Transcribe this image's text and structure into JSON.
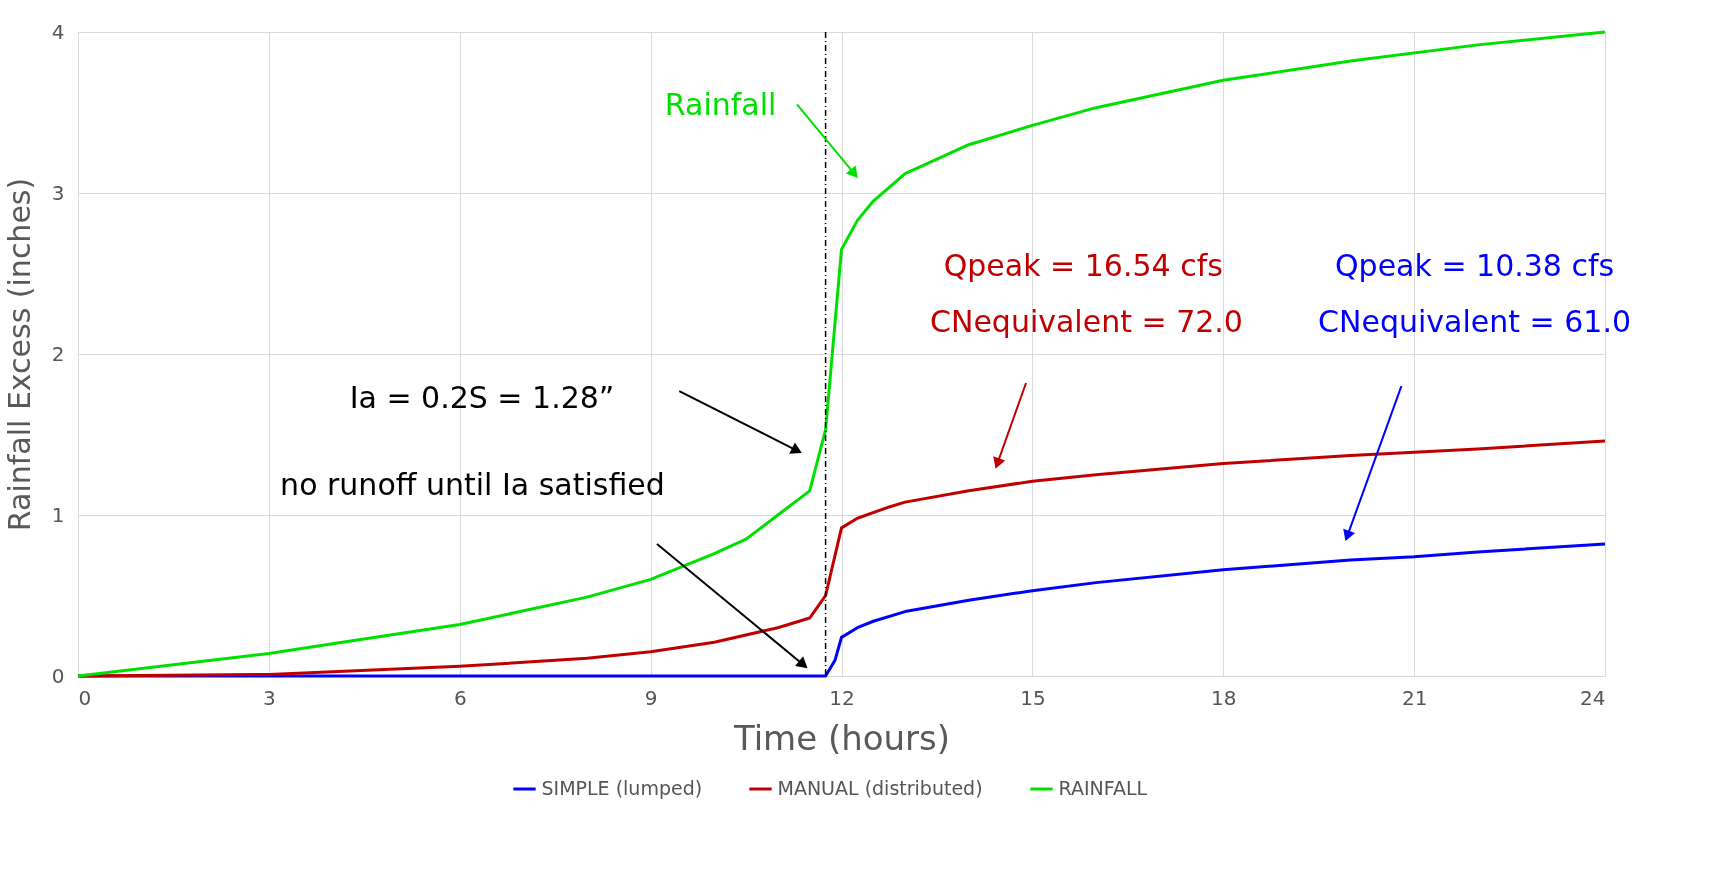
{
  "chart_data": {
    "type": "line",
    "xlabel": "Time (hours)",
    "ylabel": "Rainfall Excess (inches)",
    "xlim": [
      0,
      24
    ],
    "xticks": [
      0,
      3,
      6,
      9,
      12,
      15,
      18,
      21,
      24
    ],
    "ylim": [
      0,
      4
    ],
    "yticks": [
      0,
      1,
      2,
      3,
      4
    ],
    "grid": true,
    "legend": "bottom",
    "line_style": "solid",
    "marker": "none",
    "series": [
      {
        "name": "SIMPLE (lumped)",
        "color": "#0000ff",
        "x": [
          0,
          6,
          11.75,
          11.9,
          12,
          12.25,
          12.5,
          13,
          14,
          15,
          16,
          18,
          20,
          21,
          22,
          24
        ],
        "values": [
          0,
          0,
          0,
          0.1,
          0.24,
          0.3,
          0.34,
          0.4,
          0.47,
          0.53,
          0.58,
          0.66,
          0.72,
          0.74,
          0.77,
          0.82
        ]
      },
      {
        "name": "MANUAL (distributed)",
        "color": "#c00000",
        "x": [
          0,
          3,
          6,
          8,
          9,
          10,
          11,
          11.5,
          11.75,
          12,
          12.25,
          12.75,
          13,
          14,
          15,
          16,
          18,
          20,
          21,
          22,
          24
        ],
        "values": [
          0,
          0.01,
          0.06,
          0.11,
          0.15,
          0.21,
          0.3,
          0.36,
          0.5,
          0.92,
          0.98,
          1.05,
          1.08,
          1.15,
          1.21,
          1.25,
          1.32,
          1.37,
          1.39,
          1.41,
          1.46
        ]
      },
      {
        "name": "RAINFALL",
        "color": "#00e000",
        "x": [
          0,
          3,
          4,
          6,
          8,
          9,
          10,
          10.5,
          11,
          11.5,
          11.75,
          12,
          12.25,
          12.5,
          13,
          14,
          15,
          16,
          18,
          20,
          22,
          24
        ],
        "values": [
          0,
          0.14,
          0.2,
          0.32,
          0.49,
          0.6,
          0.76,
          0.85,
          1.0,
          1.15,
          1.53,
          2.65,
          2.83,
          2.95,
          3.12,
          3.3,
          3.42,
          3.53,
          3.7,
          3.82,
          3.92,
          4.0
        ]
      }
    ],
    "ref_lines": [
      {
        "axis": "x",
        "value": 11.75,
        "color": "#000000",
        "line_style": "dashdot"
      }
    ],
    "annotations": [
      "Rainfall",
      "Ia = 0.2S = 1.28”",
      "no runoff until Ia satisfied",
      "Qpeak = 16.54 cfs",
      "CNequivalent = 72.0",
      "Qpeak = 10.38 cfs",
      "CNequivalent = 61.0"
    ]
  }
}
